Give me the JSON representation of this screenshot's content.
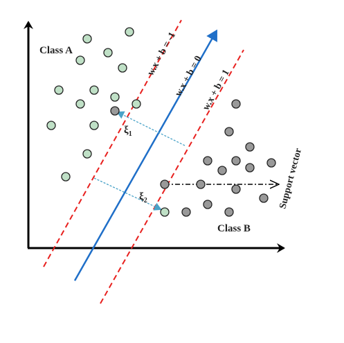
{
  "labels": {
    "class_a": "Class A",
    "class_b": "Class B",
    "support_vector": "Support vector",
    "margin_neg": "w.x + b = -1",
    "hyperplane": "w.x + b = 0",
    "margin_pos": "w.x + b = 1",
    "xi1": "ξ",
    "xi1_sub": "1",
    "xi2": "ξ",
    "xi2_sub": "2"
  },
  "colors": {
    "class_a_point": "#bfe0c6",
    "class_b_point": "#999999",
    "hyperplane": "#1f6fc8",
    "margin": "#e8201e",
    "slack_arrow": "#4aa3c8",
    "axis": "#000000"
  }
}
